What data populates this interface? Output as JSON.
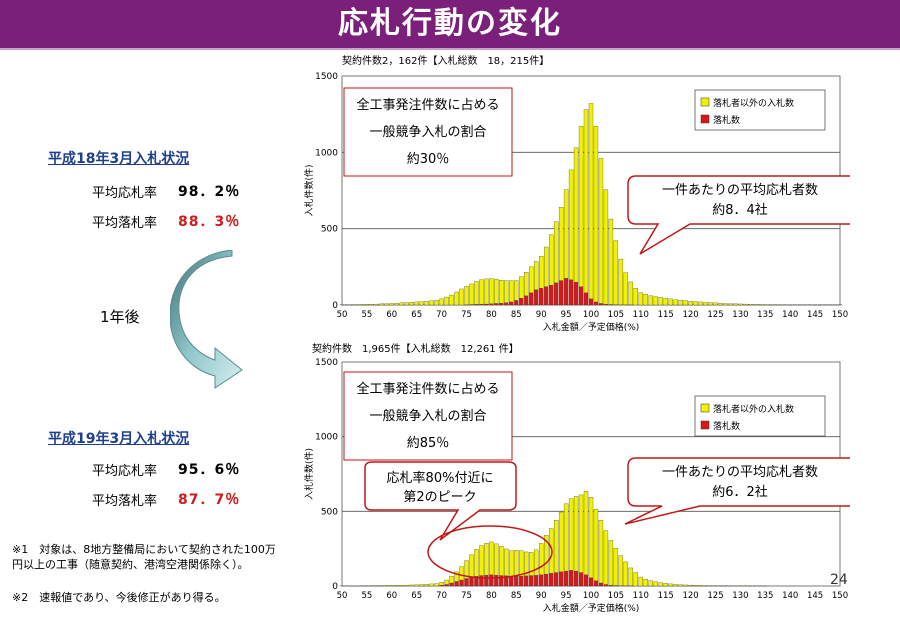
{
  "page": {
    "title": "応札行動の変化",
    "page_number": "24"
  },
  "side": {
    "h18": {
      "heading": "平成18年3月入札状況",
      "avg_bid_label": "平均応札率",
      "avg_bid_value": "98．2％",
      "avg_win_label": "平均落札率",
      "avg_win_value": "88．3％"
    },
    "after_label": "1年後",
    "h19": {
      "heading": "平成19年3月入札状況",
      "avg_bid_label": "平均応札率",
      "avg_bid_value": "95．6％",
      "avg_win_label": "平均落札率",
      "avg_win_value": "87．7％"
    },
    "notes": [
      "※1　対象は、8地方整備局において契約された100万円以上の工事（随意契約、港湾空港関係除く）。",
      "※2　速報値であり、今後修正があり得る。"
    ]
  },
  "colors": {
    "title_bg": "#7a1f7a",
    "bar_yellow": "#f2f200",
    "bar_red": "#d81818",
    "callout_border": "#c01818"
  },
  "chart_data": [
    {
      "type": "bar",
      "stacked": true,
      "header": "契約件数2，162件【入札総数　18，215件】",
      "xlabel": "入札金額／予定価格(%)",
      "ylabel": "入札件数(件)",
      "ylim": [
        0,
        1500
      ],
      "yticks": [
        0,
        500,
        1000,
        1500
      ],
      "xticks": [
        50,
        55,
        60,
        65,
        70,
        75,
        80,
        85,
        90,
        95,
        100,
        105,
        110,
        115,
        120,
        125,
        130,
        135,
        140,
        145,
        150
      ],
      "legend_position": "top-right",
      "x": [
        50,
        51,
        52,
        53,
        54,
        55,
        56,
        57,
        58,
        59,
        60,
        61,
        62,
        63,
        64,
        65,
        66,
        67,
        68,
        69,
        70,
        71,
        72,
        73,
        74,
        75,
        76,
        77,
        78,
        79,
        80,
        81,
        82,
        83,
        84,
        85,
        86,
        87,
        88,
        89,
        90,
        91,
        92,
        93,
        94,
        95,
        96,
        97,
        98,
        99,
        100,
        101,
        102,
        103,
        104,
        105,
        106,
        107,
        108,
        109,
        110,
        111,
        112,
        113,
        114,
        115,
        116,
        117,
        118,
        119,
        120,
        121,
        122,
        123,
        124,
        125,
        126,
        127,
        128,
        129,
        130,
        131,
        132,
        133,
        134,
        135,
        136,
        137,
        138,
        139,
        140,
        141,
        142,
        143,
        144,
        145,
        146,
        147,
        148,
        149,
        150
      ],
      "series": [
        {
          "name": "落札者以外の入札数",
          "values": [
            2,
            2,
            3,
            3,
            4,
            5,
            5,
            6,
            8,
            9,
            10,
            12,
            14,
            16,
            18,
            20,
            22,
            25,
            28,
            32,
            40,
            52,
            65,
            85,
            105,
            120,
            135,
            150,
            160,
            165,
            165,
            160,
            150,
            145,
            140,
            130,
            140,
            155,
            170,
            185,
            210,
            260,
            330,
            400,
            480,
            580,
            720,
            880,
            1050,
            1200,
            1280,
            1150,
            950,
            750,
            560,
            420,
            300,
            210,
            150,
            110,
            80,
            70,
            60,
            55,
            50,
            45,
            40,
            35,
            32,
            28,
            25,
            22,
            20,
            18,
            16,
            14,
            12,
            10,
            9,
            8,
            7,
            6,
            5,
            4,
            4,
            3,
            3,
            3,
            2,
            2,
            2,
            2,
            1,
            1,
            1,
            1,
            1,
            1,
            1,
            1,
            1
          ],
          "color": "#f2f200"
        },
        {
          "name": "落札数",
          "values": [
            0,
            0,
            0,
            0,
            0,
            0,
            0,
            0,
            0,
            0,
            0,
            0,
            0,
            0,
            0,
            0,
            0,
            0,
            0,
            0,
            0,
            0,
            0,
            0,
            0,
            2,
            3,
            4,
            5,
            6,
            8,
            10,
            12,
            15,
            20,
            30,
            45,
            60,
            80,
            100,
            110,
            120,
            130,
            145,
            160,
            175,
            165,
            150,
            120,
            80,
            40,
            20,
            10,
            5,
            3,
            2,
            1,
            1,
            1,
            0,
            0,
            0,
            0,
            0,
            0,
            0,
            0,
            0,
            0,
            0,
            0,
            0,
            0,
            0,
            0,
            0,
            0,
            0,
            0,
            0,
            0,
            0,
            0,
            0,
            0,
            0,
            0,
            0,
            0,
            0,
            0,
            0,
            0,
            0,
            0,
            0,
            0,
            0,
            0,
            0,
            0
          ],
          "color": "#d81818"
        }
      ],
      "annotations": {
        "box_lines": [
          "全工事発注件数に占める",
          "一般競争入札の割合",
          "約30％"
        ],
        "callout_lines": [
          "一件あたりの平均応札者数",
          "約8．4社"
        ]
      }
    },
    {
      "type": "bar",
      "stacked": true,
      "header": "契約件数　1,965件【入札総数　12,261 件】",
      "xlabel": "入札金額／予定価格(%)",
      "ylabel": "入札件数(件)",
      "ylim": [
        0,
        1500
      ],
      "yticks": [
        0,
        500,
        1000,
        1500
      ],
      "xticks": [
        50,
        55,
        60,
        65,
        70,
        75,
        80,
        85,
        90,
        95,
        100,
        105,
        110,
        115,
        120,
        125,
        130,
        135,
        140,
        145,
        150
      ],
      "legend_position": "top-right",
      "x": [
        50,
        51,
        52,
        53,
        54,
        55,
        56,
        57,
        58,
        59,
        60,
        61,
        62,
        63,
        64,
        65,
        66,
        67,
        68,
        69,
        70,
        71,
        72,
        73,
        74,
        75,
        76,
        77,
        78,
        79,
        80,
        81,
        82,
        83,
        84,
        85,
        86,
        87,
        88,
        89,
        90,
        91,
        92,
        93,
        94,
        95,
        96,
        97,
        98,
        99,
        100,
        101,
        102,
        103,
        104,
        105,
        106,
        107,
        108,
        109,
        110,
        111,
        112,
        113,
        114,
        115,
        116,
        117,
        118,
        119,
        120,
        121,
        122,
        123,
        124,
        125,
        126,
        127,
        128,
        129,
        130,
        131,
        132,
        133,
        134,
        135,
        136,
        137,
        138,
        139,
        140,
        141,
        142,
        143,
        144,
        145,
        146,
        147,
        148,
        149,
        150
      ],
      "series": [
        {
          "name": "落札者以外の入札数",
          "values": [
            1,
            1,
            1,
            1,
            2,
            2,
            2,
            3,
            3,
            4,
            4,
            5,
            5,
            6,
            7,
            8,
            10,
            12,
            14,
            16,
            20,
            30,
            45,
            65,
            90,
            120,
            150,
            180,
            200,
            215,
            220,
            210,
            195,
            180,
            170,
            175,
            170,
            160,
            155,
            170,
            210,
            260,
            300,
            350,
            400,
            450,
            480,
            500,
            520,
            560,
            540,
            480,
            420,
            360,
            300,
            250,
            200,
            160,
            120,
            90,
            60,
            45,
            35,
            28,
            22,
            18,
            14,
            11,
            9,
            7,
            6,
            5,
            4,
            3,
            3,
            2,
            2,
            2,
            1,
            1,
            1,
            1,
            1,
            1,
            1,
            1,
            0,
            0,
            0,
            0,
            0,
            0,
            0,
            0,
            0,
            0,
            0,
            0,
            0,
            0,
            0
          ],
          "color": "#f2f200"
        },
        {
          "name": "落札数",
          "values": [
            0,
            0,
            0,
            0,
            0,
            0,
            0,
            0,
            0,
            0,
            0,
            0,
            0,
            0,
            0,
            0,
            0,
            0,
            0,
            0,
            5,
            10,
            20,
            30,
            40,
            50,
            60,
            65,
            70,
            72,
            75,
            72,
            70,
            68,
            66,
            65,
            66,
            68,
            70,
            72,
            75,
            80,
            85,
            90,
            95,
            100,
            105,
            100,
            90,
            75,
            55,
            35,
            20,
            10,
            5,
            3,
            2,
            1,
            1,
            0,
            0,
            0,
            0,
            0,
            0,
            0,
            0,
            0,
            0,
            0,
            0,
            0,
            0,
            0,
            0,
            0,
            0,
            0,
            0,
            0,
            0,
            0,
            0,
            0,
            0,
            0,
            0,
            0,
            0,
            0,
            0,
            0,
            0,
            0,
            0,
            0,
            0,
            0,
            0,
            0,
            0
          ],
          "color": "#d81818"
        }
      ],
      "annotations": {
        "box_lines": [
          "全工事発注件数に占める",
          "一般競争入札の割合",
          "約85％"
        ],
        "callout_lines": [
          "一件あたりの平均応札者数",
          "約6．2社"
        ],
        "peak_lines": [
          "応札率80%付近に",
          "第2のピーク"
        ]
      }
    }
  ]
}
